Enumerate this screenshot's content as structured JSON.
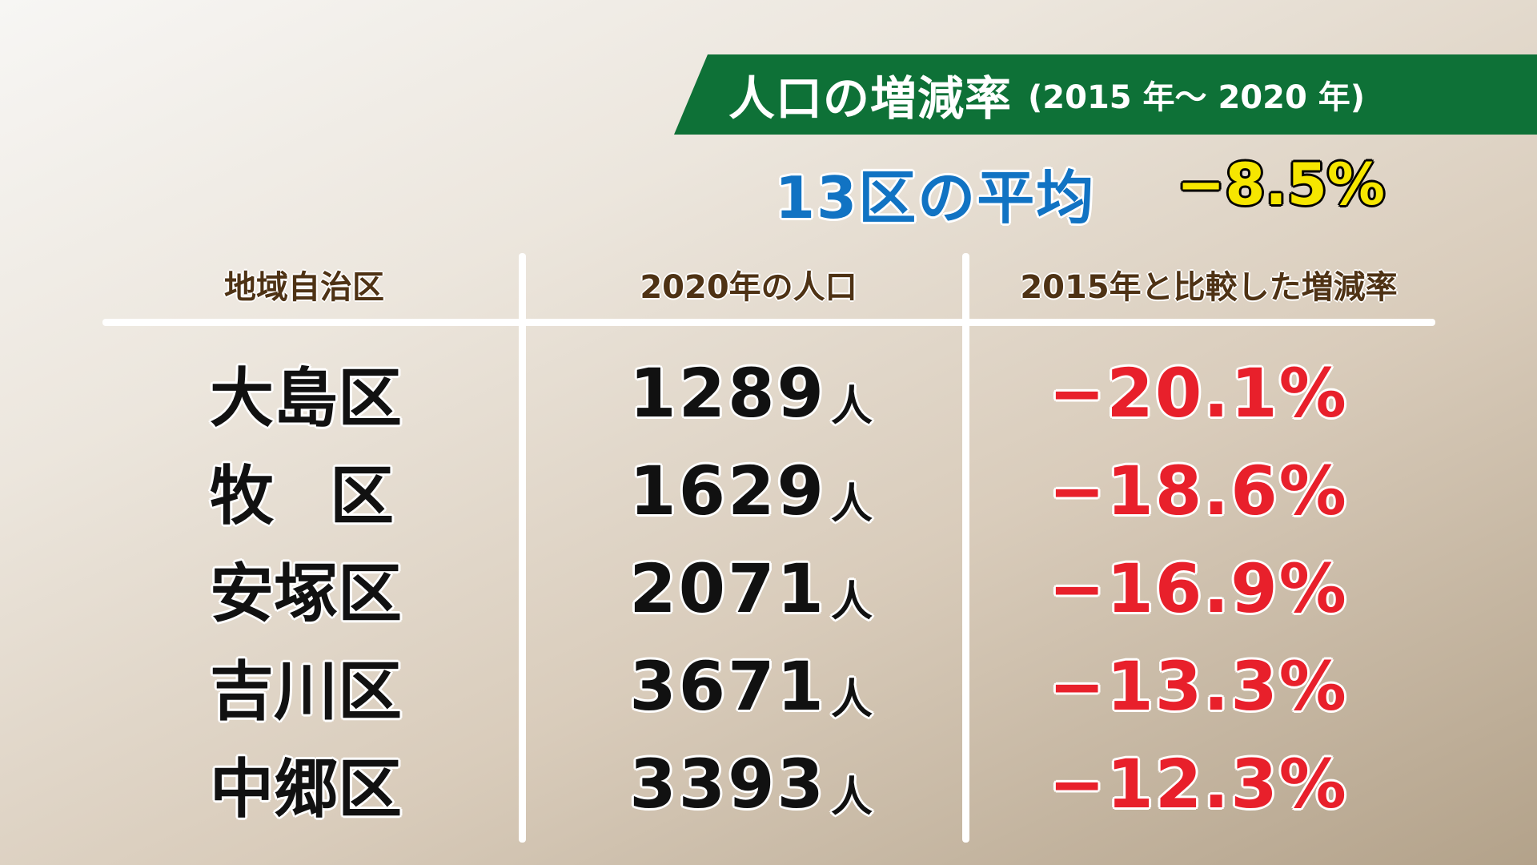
{
  "title": {
    "main": "人口の増減率",
    "period": "(2015 年～ 2020 年)"
  },
  "average": {
    "label": "13区の平均",
    "value": "−8.5%"
  },
  "table": {
    "headers": [
      "地域自治区",
      "2020年の人口",
      "2015年と比較した増減率"
    ],
    "rows": [
      {
        "district_chars": [
          "大",
          "島",
          "区"
        ],
        "population": "1289",
        "unit": "人",
        "rate": "−20.1%"
      },
      {
        "district_chars": [
          "牧",
          "区"
        ],
        "population": "1629",
        "unit": "人",
        "rate": "−18.6%"
      },
      {
        "district_chars": [
          "安",
          "塚",
          "区"
        ],
        "population": "2071",
        "unit": "人",
        "rate": "−16.9%"
      },
      {
        "district_chars": [
          "吉",
          "川",
          "区"
        ],
        "population": "3671",
        "unit": "人",
        "rate": "−13.3%"
      },
      {
        "district_chars": [
          "中",
          "郷",
          "区"
        ],
        "population": "3393",
        "unit": "人",
        "rate": "−12.3%"
      }
    ]
  },
  "colors": {
    "banner": "#0e7137",
    "average_label": "#1173c3",
    "average_value": "#f6e600",
    "header_text": "#4e3214",
    "rate_text": "#e8202b"
  }
}
